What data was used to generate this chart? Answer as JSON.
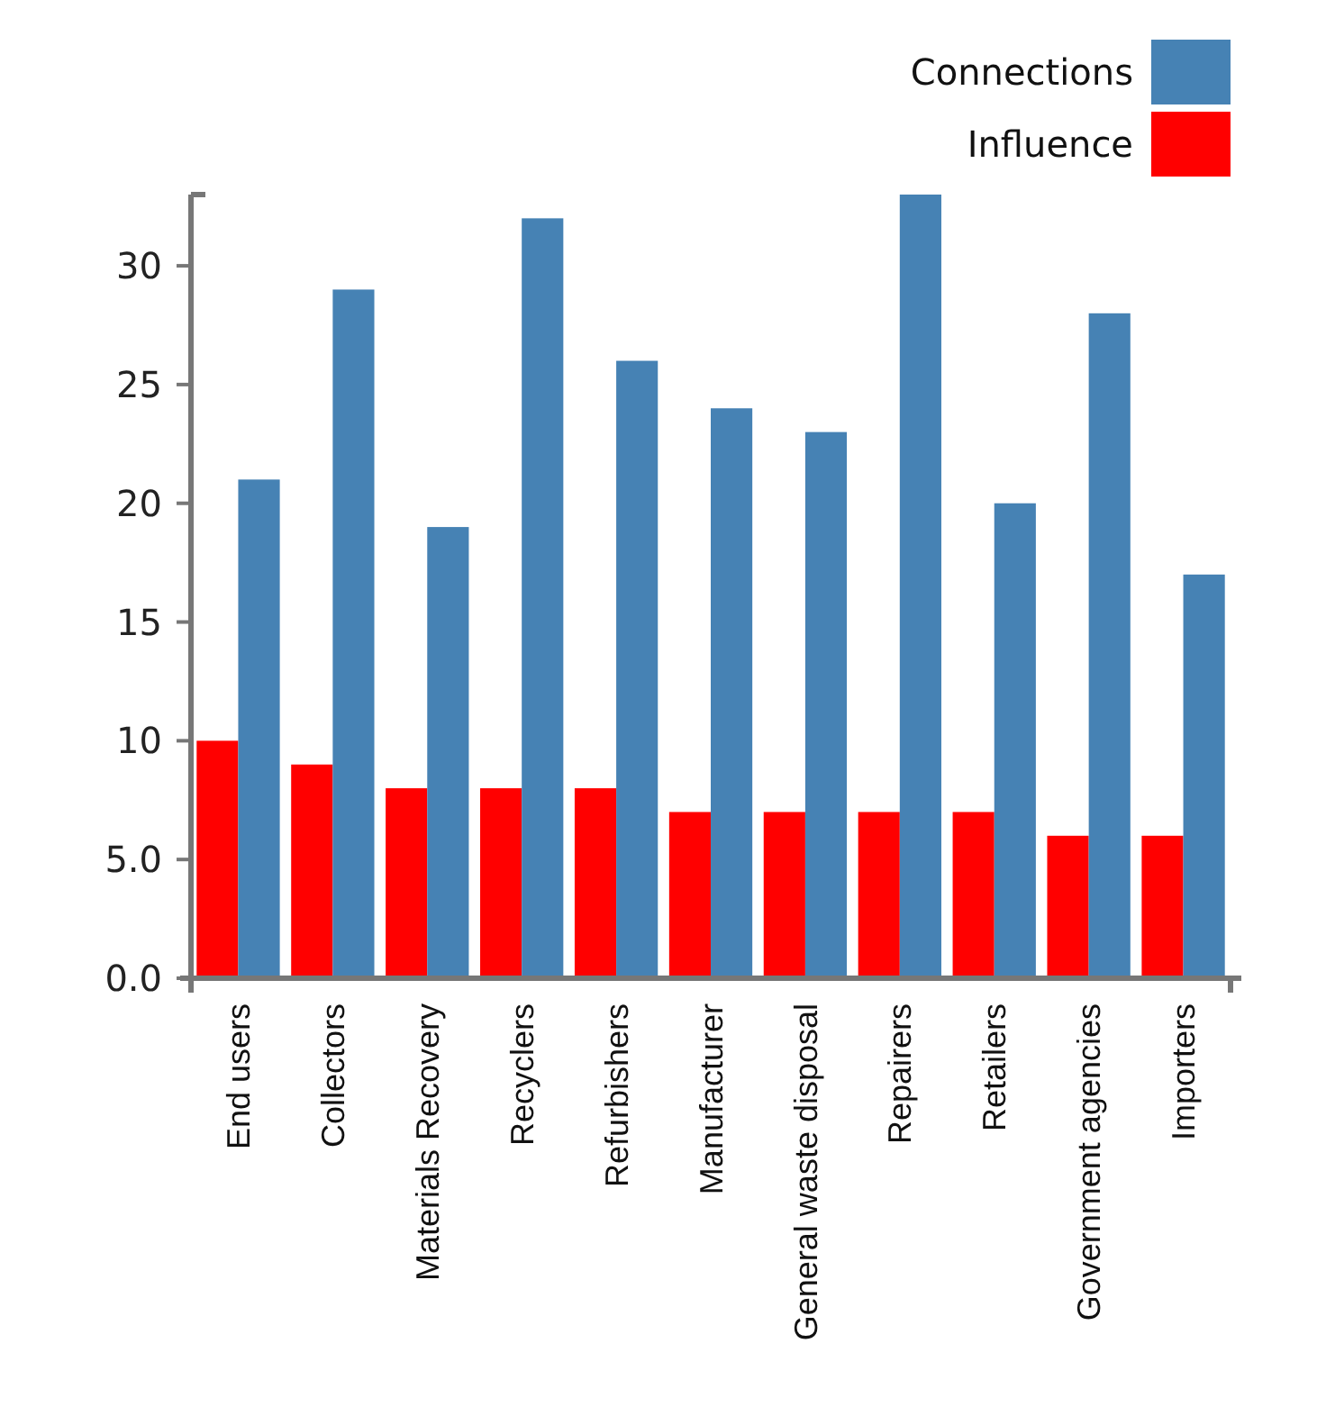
{
  "chart_data": {
    "type": "bar",
    "categories": [
      "End users",
      "Collectors",
      "Materials Recovery",
      "Recyclers",
      "Refurbishers",
      "Manufacturer",
      "General waste disposal",
      "Repairers",
      "Retailers",
      "Government agencies",
      "Importers"
    ],
    "series": [
      {
        "name": "Influence",
        "color": "#ff0000",
        "values": [
          10,
          9,
          8,
          8,
          8,
          7,
          7,
          7,
          7,
          6,
          6
        ]
      },
      {
        "name": "Connections",
        "color": "#4682b4",
        "values": [
          21,
          29,
          19,
          32,
          26,
          24,
          23,
          33,
          20,
          28,
          17
        ]
      }
    ],
    "ylim": [
      0,
      33
    ],
    "yticks": [
      {
        "value": 0,
        "label": "0.0"
      },
      {
        "value": 5,
        "label": "5.0"
      },
      10,
      15,
      20,
      25,
      30
    ],
    "legend": "top right",
    "grid": false
  }
}
